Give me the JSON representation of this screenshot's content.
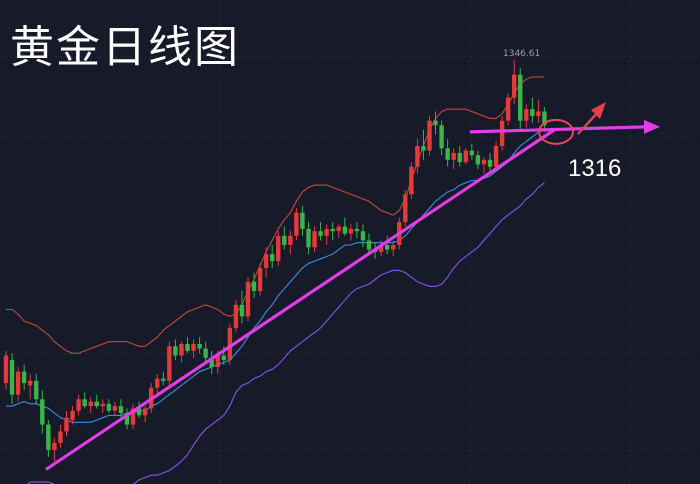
{
  "title": "黄金日线图",
  "annotations": {
    "peak_price": "1346.61",
    "support_level": "1316"
  },
  "colors": {
    "background": "#161a29",
    "grid": "#2a2f42",
    "up_candle": "#e43a3a",
    "down_candle": "#3bb54a",
    "boll_upper": "#c24a3a",
    "boll_middle": "#3d8fe0",
    "boll_lower": "#8a52e6",
    "trendline": "#e23ce8",
    "arrow_up": "#e83e4c",
    "circle": "#e8455a"
  },
  "chart_data": {
    "type": "candlestick",
    "title": "黄金日线图",
    "xlabel": "",
    "ylabel": "",
    "ylim": [
      1170,
      1352
    ],
    "candles": [
      [
        1206,
        1220,
        1203,
        1218
      ],
      [
        1216,
        1219,
        1197,
        1201
      ],
      [
        1201,
        1213,
        1198,
        1211
      ],
      [
        1211,
        1214,
        1203,
        1206
      ],
      [
        1205,
        1210,
        1199,
        1207
      ],
      [
        1207,
        1210,
        1197,
        1199
      ],
      [
        1199,
        1203,
        1184,
        1188
      ],
      [
        1188,
        1190,
        1174,
        1177
      ],
      [
        1177,
        1182,
        1172,
        1180
      ],
      [
        1180,
        1188,
        1178,
        1185
      ],
      [
        1185,
        1194,
        1183,
        1191
      ],
      [
        1190,
        1196,
        1188,
        1194
      ],
      [
        1194,
        1201,
        1192,
        1199
      ],
      [
        1199,
        1202,
        1195,
        1196
      ],
      [
        1196,
        1200,
        1193,
        1198
      ],
      [
        1198,
        1201,
        1195,
        1196
      ],
      [
        1196,
        1199,
        1193,
        1197
      ],
      [
        1197,
        1199,
        1193,
        1194
      ],
      [
        1194,
        1198,
        1192,
        1196
      ],
      [
        1196,
        1199,
        1191,
        1193
      ],
      [
        1193,
        1195,
        1186,
        1188
      ],
      [
        1188,
        1197,
        1186,
        1195
      ],
      [
        1195,
        1198,
        1191,
        1192
      ],
      [
        1192,
        1196,
        1189,
        1195
      ],
      [
        1195,
        1206,
        1193,
        1204
      ],
      [
        1204,
        1210,
        1201,
        1208
      ],
      [
        1208,
        1211,
        1205,
        1207
      ],
      [
        1207,
        1224,
        1205,
        1222
      ],
      [
        1222,
        1225,
        1216,
        1218
      ],
      [
        1218,
        1224,
        1215,
        1223
      ],
      [
        1223,
        1226,
        1219,
        1220
      ],
      [
        1220,
        1225,
        1217,
        1223
      ],
      [
        1223,
        1226,
        1219,
        1221
      ],
      [
        1221,
        1224,
        1215,
        1217
      ],
      [
        1217,
        1220,
        1210,
        1213
      ],
      [
        1213,
        1220,
        1210,
        1218
      ],
      [
        1218,
        1222,
        1214,
        1216
      ],
      [
        1216,
        1232,
        1214,
        1230
      ],
      [
        1230,
        1242,
        1228,
        1240
      ],
      [
        1240,
        1246,
        1232,
        1235
      ],
      [
        1235,
        1252,
        1233,
        1250
      ],
      [
        1250,
        1254,
        1243,
        1246
      ],
      [
        1246,
        1258,
        1244,
        1256
      ],
      [
        1256,
        1265,
        1252,
        1262
      ],
      [
        1262,
        1266,
        1256,
        1259
      ],
      [
        1259,
        1272,
        1257,
        1270
      ],
      [
        1270,
        1274,
        1264,
        1266
      ],
      [
        1266,
        1272,
        1262,
        1270
      ],
      [
        1270,
        1282,
        1268,
        1280
      ],
      [
        1280,
        1283,
        1270,
        1273
      ],
      [
        1273,
        1276,
        1262,
        1265
      ],
      [
        1265,
        1274,
        1263,
        1272
      ],
      [
        1272,
        1276,
        1268,
        1270
      ],
      [
        1270,
        1275,
        1266,
        1273
      ],
      [
        1273,
        1276,
        1268,
        1272
      ],
      [
        1272,
        1275,
        1269,
        1274
      ],
      [
        1274,
        1278,
        1270,
        1271
      ],
      [
        1271,
        1275,
        1268,
        1273
      ],
      [
        1273,
        1276,
        1269,
        1272
      ],
      [
        1272,
        1275,
        1265,
        1268
      ],
      [
        1268,
        1271,
        1262,
        1264
      ],
      [
        1264,
        1267,
        1260,
        1263
      ],
      [
        1263,
        1268,
        1261,
        1266
      ],
      [
        1266,
        1270,
        1262,
        1264
      ],
      [
        1264,
        1268,
        1261,
        1266
      ],
      [
        1266,
        1278,
        1264,
        1276
      ],
      [
        1276,
        1290,
        1274,
        1288
      ],
      [
        1288,
        1302,
        1286,
        1300
      ],
      [
        1300,
        1312,
        1297,
        1309
      ],
      [
        1309,
        1316,
        1303,
        1307
      ],
      [
        1307,
        1322,
        1305,
        1320
      ],
      [
        1320,
        1324,
        1314,
        1318
      ],
      [
        1318,
        1320,
        1305,
        1308
      ],
      [
        1308,
        1312,
        1300,
        1303
      ],
      [
        1303,
        1308,
        1299,
        1306
      ],
      [
        1306,
        1309,
        1300,
        1302
      ],
      [
        1302,
        1308,
        1301,
        1307
      ],
      [
        1307,
        1310,
        1303,
        1305
      ],
      [
        1305,
        1307,
        1299,
        1301
      ],
      [
        1301,
        1304,
        1297,
        1303
      ],
      [
        1303,
        1306,
        1297,
        1300
      ],
      [
        1300,
        1311,
        1298,
        1309
      ],
      [
        1309,
        1322,
        1307,
        1320
      ],
      [
        1320,
        1332,
        1318,
        1330
      ],
      [
        1330,
        1346.61,
        1327,
        1340
      ],
      [
        1340,
        1343,
        1316,
        1320
      ],
      [
        1320,
        1327,
        1317,
        1325
      ],
      [
        1325,
        1330,
        1319,
        1322
      ],
      [
        1322,
        1329,
        1319,
        1324
      ],
      [
        1324,
        1326,
        1315,
        1318
      ]
    ],
    "bollinger": {
      "upper": [
        1238,
        1238,
        1236,
        1233,
        1232,
        1231,
        1229,
        1227,
        1224,
        1222,
        1220,
        1219,
        1219,
        1220,
        1221,
        1222,
        1223,
        1224,
        1224,
        1224,
        1224,
        1223,
        1222,
        1222,
        1224,
        1226,
        1229,
        1231,
        1233,
        1235,
        1237,
        1238,
        1239,
        1240,
        1239,
        1238,
        1236,
        1235,
        1236,
        1240,
        1246,
        1251,
        1257,
        1263,
        1268,
        1273,
        1277,
        1280,
        1285,
        1289,
        1291,
        1292,
        1292,
        1292,
        1291,
        1290,
        1289,
        1288,
        1287,
        1286,
        1285,
        1283,
        1281,
        1280,
        1279,
        1281,
        1286,
        1294,
        1302,
        1309,
        1316,
        1321,
        1324,
        1325,
        1325,
        1325,
        1325,
        1324,
        1323,
        1322,
        1321,
        1321,
        1323,
        1327,
        1332,
        1336,
        1338,
        1339,
        1339,
        1339
      ],
      "middle": [
        1196,
        1196,
        1197,
        1198,
        1197,
        1197,
        1196,
        1195,
        1193,
        1191,
        1190,
        1189,
        1189,
        1189,
        1189,
        1190,
        1191,
        1192,
        1192,
        1192,
        1193,
        1193,
        1194,
        1194,
        1196,
        1197,
        1199,
        1201,
        1203,
        1205,
        1207,
        1209,
        1211,
        1212,
        1213,
        1214,
        1215,
        1216,
        1219,
        1222,
        1226,
        1230,
        1233,
        1237,
        1240,
        1244,
        1247,
        1250,
        1253,
        1256,
        1258,
        1259,
        1260,
        1261,
        1262,
        1264,
        1266,
        1266,
        1267,
        1267,
        1267,
        1267,
        1267,
        1267,
        1267,
        1268,
        1270,
        1273,
        1276,
        1279,
        1282,
        1285,
        1287,
        1289,
        1290,
        1292,
        1293,
        1294,
        1294,
        1295,
        1296,
        1298,
        1300,
        1302,
        1306,
        1309,
        1311,
        1313,
        1315,
        1316
      ],
      "lower": [
        1154,
        1156,
        1158,
        1161,
        1163,
        1163,
        1163,
        1163,
        1162,
        1160,
        1160,
        1160,
        1160,
        1159,
        1158,
        1158,
        1159,
        1160,
        1161,
        1161,
        1161,
        1162,
        1164,
        1165,
        1166,
        1166,
        1167,
        1168,
        1170,
        1172,
        1175,
        1179,
        1183,
        1186,
        1188,
        1190,
        1192,
        1196,
        1202,
        1205,
        1206,
        1208,
        1209,
        1211,
        1212,
        1214,
        1217,
        1220,
        1222,
        1224,
        1226,
        1228,
        1230,
        1233,
        1236,
        1239,
        1242,
        1245,
        1247,
        1248,
        1249,
        1251,
        1253,
        1254,
        1255,
        1255,
        1254,
        1252,
        1250,
        1249,
        1248,
        1248,
        1249,
        1252,
        1256,
        1259,
        1261,
        1263,
        1265,
        1268,
        1271,
        1274,
        1277,
        1279,
        1281,
        1283,
        1286,
        1288,
        1291,
        1293
      ]
    },
    "trendline": [
      [
        0,
        1172
      ],
      [
        86,
        1316
      ]
    ],
    "horizontal_arrow_level": 1316
  }
}
